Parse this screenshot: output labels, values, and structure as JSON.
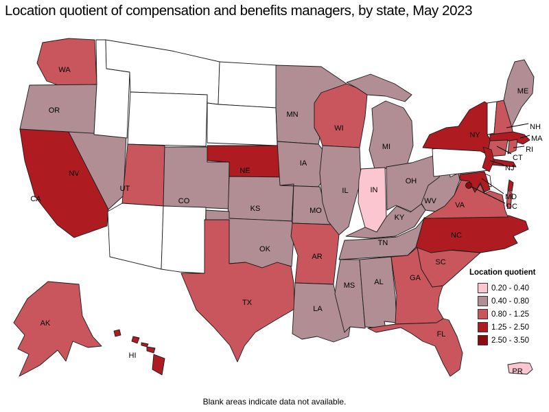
{
  "title": "Location quotient of compensation and benefits managers, by state, May 2023",
  "footnote": "Blank areas indicate data not available.",
  "legend": {
    "title": "Location quotient",
    "no_data_color": "#ffffff",
    "items": [
      {
        "range": "0.20 - 0.40",
        "color": "#fbc6cf"
      },
      {
        "range": "0.40 - 0.80",
        "color": "#b18e93"
      },
      {
        "range": "0.80 - 1.25",
        "color": "#c9565d"
      },
      {
        "range": "1.25 - 2.50",
        "color": "#ae1c22"
      },
      {
        "range": "2.50 - 3.50",
        "color": "#8b0a10"
      }
    ]
  },
  "map": {
    "border_color": "#1a1a1a",
    "background": "#ffffff"
  },
  "chart_data": {
    "type": "choropleth",
    "measure": "location quotient",
    "period": "May 2023",
    "occupation": "compensation and benefits managers",
    "buckets": [
      "0.20 - 0.40",
      "0.40 - 0.80",
      "0.80 - 1.25",
      "1.25 - 2.50",
      "2.50 - 3.50"
    ],
    "no_data_note": "blank = data not available",
    "states": [
      {
        "id": "WA",
        "label": "WA",
        "bucket": 2
      },
      {
        "id": "OR",
        "label": "OR",
        "bucket": 1
      },
      {
        "id": "CA",
        "label": "CA",
        "bucket": 3
      },
      {
        "id": "NV",
        "label": "NV",
        "bucket": 1
      },
      {
        "id": "ID",
        "label": "",
        "bucket": null
      },
      {
        "id": "MT",
        "label": "",
        "bucket": null
      },
      {
        "id": "WY",
        "label": "",
        "bucket": null
      },
      {
        "id": "UT",
        "label": "UT",
        "bucket": 2
      },
      {
        "id": "CO",
        "label": "CO",
        "bucket": 1
      },
      {
        "id": "AZ",
        "label": "",
        "bucket": null
      },
      {
        "id": "NM",
        "label": "",
        "bucket": null
      },
      {
        "id": "ND",
        "label": "",
        "bucket": null
      },
      {
        "id": "SD",
        "label": "",
        "bucket": null
      },
      {
        "id": "NE",
        "label": "NE",
        "bucket": 3
      },
      {
        "id": "KS",
        "label": "KS",
        "bucket": 1
      },
      {
        "id": "OK",
        "label": "OK",
        "bucket": 1
      },
      {
        "id": "TX",
        "label": "TX",
        "bucket": 2
      },
      {
        "id": "MN",
        "label": "MN",
        "bucket": 1
      },
      {
        "id": "IA",
        "label": "IA",
        "bucket": 1
      },
      {
        "id": "MO",
        "label": "MO",
        "bucket": 1
      },
      {
        "id": "AR",
        "label": "AR",
        "bucket": 2
      },
      {
        "id": "LA",
        "label": "LA",
        "bucket": 1
      },
      {
        "id": "WI",
        "label": "WI",
        "bucket": 2
      },
      {
        "id": "IL",
        "label": "IL",
        "bucket": 1
      },
      {
        "id": "MI",
        "label": "MI",
        "bucket": 1
      },
      {
        "id": "IN",
        "label": "IN",
        "bucket": 0
      },
      {
        "id": "OH",
        "label": "OH",
        "bucket": 1
      },
      {
        "id": "KY",
        "label": "KY",
        "bucket": 1
      },
      {
        "id": "TN",
        "label": "TN",
        "bucket": 1
      },
      {
        "id": "MS",
        "label": "MS",
        "bucket": 1
      },
      {
        "id": "AL",
        "label": "AL",
        "bucket": 1
      },
      {
        "id": "GA",
        "label": "GA",
        "bucket": 2
      },
      {
        "id": "FL",
        "label": "FL",
        "bucket": 2
      },
      {
        "id": "SC",
        "label": "SC",
        "bucket": 2
      },
      {
        "id": "NC",
        "label": "NC",
        "bucket": 3
      },
      {
        "id": "VA",
        "label": "VA",
        "bucket": 2
      },
      {
        "id": "WV",
        "label": "WV",
        "bucket": 1
      },
      {
        "id": "PA",
        "label": "",
        "bucket": null
      },
      {
        "id": "NY",
        "label": "NY",
        "bucket": 3
      },
      {
        "id": "VT",
        "label": "",
        "bucket": null
      },
      {
        "id": "NH",
        "label": "NH",
        "bucket": 2
      },
      {
        "id": "ME",
        "label": "ME",
        "bucket": 1
      },
      {
        "id": "MA",
        "label": "MA",
        "bucket": 3
      },
      {
        "id": "RI",
        "label": "RI",
        "bucket": 2
      },
      {
        "id": "CT",
        "label": "CT",
        "bucket": 2
      },
      {
        "id": "NJ",
        "label": "NJ",
        "bucket": 3
      },
      {
        "id": "DE",
        "label": "",
        "bucket": null
      },
      {
        "id": "MD",
        "label": "MD",
        "bucket": 3
      },
      {
        "id": "DC",
        "label": "DC",
        "bucket": 4
      },
      {
        "id": "AK",
        "label": "AK",
        "bucket": 2
      },
      {
        "id": "HI",
        "label": "HI",
        "bucket": 3
      },
      {
        "id": "PR",
        "label": "PR",
        "bucket": 0
      }
    ]
  }
}
